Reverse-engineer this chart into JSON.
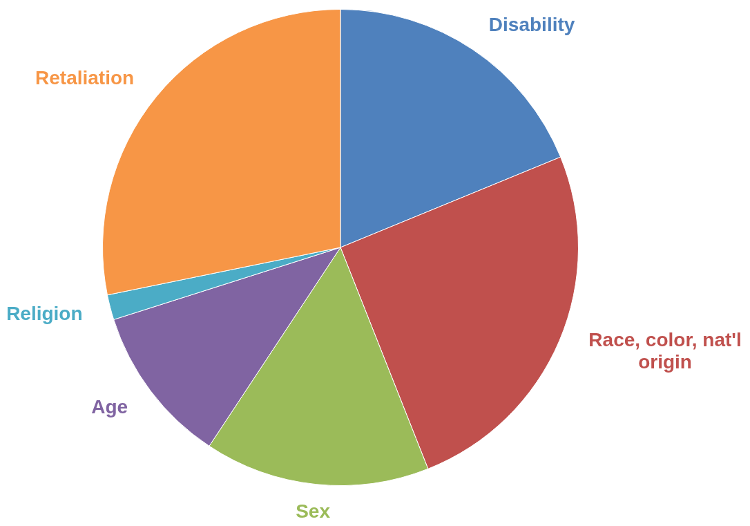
{
  "chart_data": {
    "type": "pie",
    "categories": [
      "Disability",
      "Race, color, nat'l origin",
      "Sex",
      "Age",
      "Religion",
      "Retaliation"
    ],
    "values": [
      18.8,
      25.2,
      15.3,
      10.8,
      1.7,
      28.2
    ],
    "colors": [
      "#4f81bd",
      "#c0504d",
      "#9bbb59",
      "#8064a2",
      "#4bacc6",
      "#f79646"
    ],
    "legend": false
  }
}
